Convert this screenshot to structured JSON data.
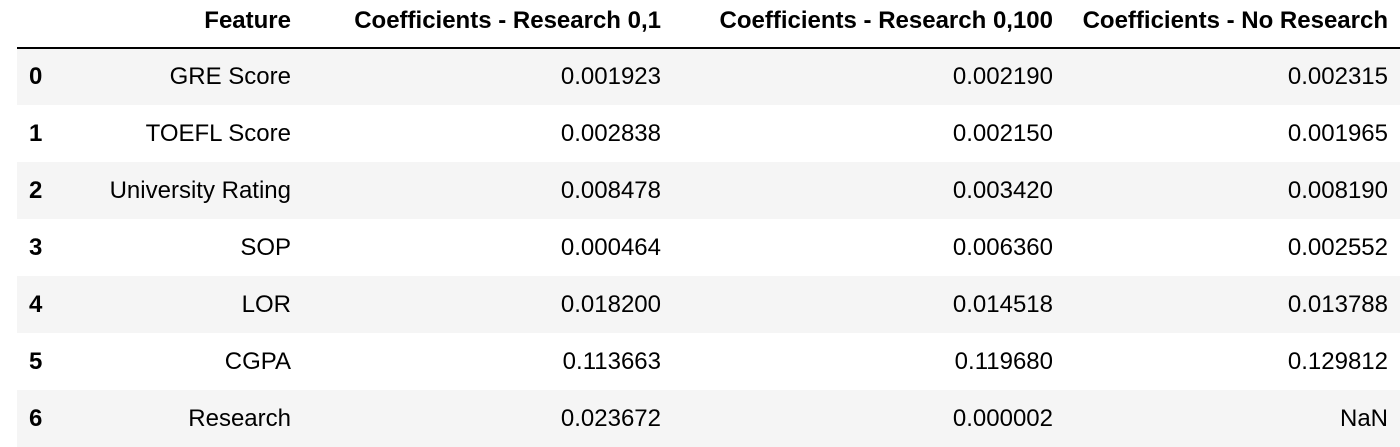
{
  "table": {
    "columns": [
      "",
      "Feature",
      "Coefficients - Research 0,1",
      "Coefficients - Research 0,100",
      "Coefficients - No Research"
    ],
    "rows": [
      {
        "index": "0",
        "feature": "GRE Score",
        "research_0_1": "0.001923",
        "research_0_100": "0.002190",
        "no_research": "0.002315"
      },
      {
        "index": "1",
        "feature": "TOEFL Score",
        "research_0_1": "0.002838",
        "research_0_100": "0.002150",
        "no_research": "0.001965"
      },
      {
        "index": "2",
        "feature": "University Rating",
        "research_0_1": "0.008478",
        "research_0_100": "0.003420",
        "no_research": "0.008190"
      },
      {
        "index": "3",
        "feature": "SOP",
        "research_0_1": "0.000464",
        "research_0_100": "0.006360",
        "no_research": "0.002552"
      },
      {
        "index": "4",
        "feature": "LOR",
        "research_0_1": "0.018200",
        "research_0_100": "0.014518",
        "no_research": "0.013788"
      },
      {
        "index": "5",
        "feature": "CGPA",
        "research_0_1": "0.113663",
        "research_0_100": "0.119680",
        "no_research": "0.129812"
      },
      {
        "index": "6",
        "feature": "Research",
        "research_0_1": "0.023672",
        "research_0_100": "0.000002",
        "no_research": "NaN"
      }
    ]
  },
  "colors": {
    "stripe": "#f5f5f5",
    "background": "#ffffff",
    "header_rule": "#000000",
    "text": "#000000"
  }
}
